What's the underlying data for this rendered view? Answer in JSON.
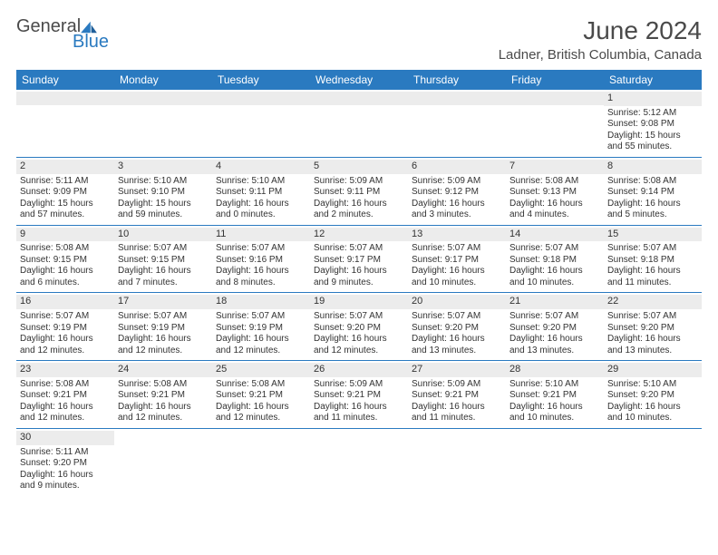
{
  "brand": {
    "part1": "General",
    "part2": "Blue"
  },
  "title": "June 2024",
  "location": "Ladner, British Columbia, Canada",
  "colors": {
    "header_bg": "#2a7ac0",
    "text": "#4a4a4a",
    "grid": "#2a7ac0",
    "daynum_bg": "#ececec"
  },
  "day_headers": [
    "Sunday",
    "Monday",
    "Tuesday",
    "Wednesday",
    "Thursday",
    "Friday",
    "Saturday"
  ],
  "weeks": [
    [
      {
        "n": "",
        "sr": "",
        "ss": "",
        "dl": ""
      },
      {
        "n": "",
        "sr": "",
        "ss": "",
        "dl": ""
      },
      {
        "n": "",
        "sr": "",
        "ss": "",
        "dl": ""
      },
      {
        "n": "",
        "sr": "",
        "ss": "",
        "dl": ""
      },
      {
        "n": "",
        "sr": "",
        "ss": "",
        "dl": ""
      },
      {
        "n": "",
        "sr": "",
        "ss": "",
        "dl": ""
      },
      {
        "n": "1",
        "sr": "Sunrise: 5:12 AM",
        "ss": "Sunset: 9:08 PM",
        "dl": "Daylight: 15 hours and 55 minutes."
      }
    ],
    [
      {
        "n": "2",
        "sr": "Sunrise: 5:11 AM",
        "ss": "Sunset: 9:09 PM",
        "dl": "Daylight: 15 hours and 57 minutes."
      },
      {
        "n": "3",
        "sr": "Sunrise: 5:10 AM",
        "ss": "Sunset: 9:10 PM",
        "dl": "Daylight: 15 hours and 59 minutes."
      },
      {
        "n": "4",
        "sr": "Sunrise: 5:10 AM",
        "ss": "Sunset: 9:11 PM",
        "dl": "Daylight: 16 hours and 0 minutes."
      },
      {
        "n": "5",
        "sr": "Sunrise: 5:09 AM",
        "ss": "Sunset: 9:11 PM",
        "dl": "Daylight: 16 hours and 2 minutes."
      },
      {
        "n": "6",
        "sr": "Sunrise: 5:09 AM",
        "ss": "Sunset: 9:12 PM",
        "dl": "Daylight: 16 hours and 3 minutes."
      },
      {
        "n": "7",
        "sr": "Sunrise: 5:08 AM",
        "ss": "Sunset: 9:13 PM",
        "dl": "Daylight: 16 hours and 4 minutes."
      },
      {
        "n": "8",
        "sr": "Sunrise: 5:08 AM",
        "ss": "Sunset: 9:14 PM",
        "dl": "Daylight: 16 hours and 5 minutes."
      }
    ],
    [
      {
        "n": "9",
        "sr": "Sunrise: 5:08 AM",
        "ss": "Sunset: 9:15 PM",
        "dl": "Daylight: 16 hours and 6 minutes."
      },
      {
        "n": "10",
        "sr": "Sunrise: 5:07 AM",
        "ss": "Sunset: 9:15 PM",
        "dl": "Daylight: 16 hours and 7 minutes."
      },
      {
        "n": "11",
        "sr": "Sunrise: 5:07 AM",
        "ss": "Sunset: 9:16 PM",
        "dl": "Daylight: 16 hours and 8 minutes."
      },
      {
        "n": "12",
        "sr": "Sunrise: 5:07 AM",
        "ss": "Sunset: 9:17 PM",
        "dl": "Daylight: 16 hours and 9 minutes."
      },
      {
        "n": "13",
        "sr": "Sunrise: 5:07 AM",
        "ss": "Sunset: 9:17 PM",
        "dl": "Daylight: 16 hours and 10 minutes."
      },
      {
        "n": "14",
        "sr": "Sunrise: 5:07 AM",
        "ss": "Sunset: 9:18 PM",
        "dl": "Daylight: 16 hours and 10 minutes."
      },
      {
        "n": "15",
        "sr": "Sunrise: 5:07 AM",
        "ss": "Sunset: 9:18 PM",
        "dl": "Daylight: 16 hours and 11 minutes."
      }
    ],
    [
      {
        "n": "16",
        "sr": "Sunrise: 5:07 AM",
        "ss": "Sunset: 9:19 PM",
        "dl": "Daylight: 16 hours and 12 minutes."
      },
      {
        "n": "17",
        "sr": "Sunrise: 5:07 AM",
        "ss": "Sunset: 9:19 PM",
        "dl": "Daylight: 16 hours and 12 minutes."
      },
      {
        "n": "18",
        "sr": "Sunrise: 5:07 AM",
        "ss": "Sunset: 9:19 PM",
        "dl": "Daylight: 16 hours and 12 minutes."
      },
      {
        "n": "19",
        "sr": "Sunrise: 5:07 AM",
        "ss": "Sunset: 9:20 PM",
        "dl": "Daylight: 16 hours and 12 minutes."
      },
      {
        "n": "20",
        "sr": "Sunrise: 5:07 AM",
        "ss": "Sunset: 9:20 PM",
        "dl": "Daylight: 16 hours and 13 minutes."
      },
      {
        "n": "21",
        "sr": "Sunrise: 5:07 AM",
        "ss": "Sunset: 9:20 PM",
        "dl": "Daylight: 16 hours and 13 minutes."
      },
      {
        "n": "22",
        "sr": "Sunrise: 5:07 AM",
        "ss": "Sunset: 9:20 PM",
        "dl": "Daylight: 16 hours and 13 minutes."
      }
    ],
    [
      {
        "n": "23",
        "sr": "Sunrise: 5:08 AM",
        "ss": "Sunset: 9:21 PM",
        "dl": "Daylight: 16 hours and 12 minutes."
      },
      {
        "n": "24",
        "sr": "Sunrise: 5:08 AM",
        "ss": "Sunset: 9:21 PM",
        "dl": "Daylight: 16 hours and 12 minutes."
      },
      {
        "n": "25",
        "sr": "Sunrise: 5:08 AM",
        "ss": "Sunset: 9:21 PM",
        "dl": "Daylight: 16 hours and 12 minutes."
      },
      {
        "n": "26",
        "sr": "Sunrise: 5:09 AM",
        "ss": "Sunset: 9:21 PM",
        "dl": "Daylight: 16 hours and 11 minutes."
      },
      {
        "n": "27",
        "sr": "Sunrise: 5:09 AM",
        "ss": "Sunset: 9:21 PM",
        "dl": "Daylight: 16 hours and 11 minutes."
      },
      {
        "n": "28",
        "sr": "Sunrise: 5:10 AM",
        "ss": "Sunset: 9:21 PM",
        "dl": "Daylight: 16 hours and 10 minutes."
      },
      {
        "n": "29",
        "sr": "Sunrise: 5:10 AM",
        "ss": "Sunset: 9:20 PM",
        "dl": "Daylight: 16 hours and 10 minutes."
      }
    ],
    [
      {
        "n": "30",
        "sr": "Sunrise: 5:11 AM",
        "ss": "Sunset: 9:20 PM",
        "dl": "Daylight: 16 hours and 9 minutes."
      },
      {
        "n": "",
        "sr": "",
        "ss": "",
        "dl": ""
      },
      {
        "n": "",
        "sr": "",
        "ss": "",
        "dl": ""
      },
      {
        "n": "",
        "sr": "",
        "ss": "",
        "dl": ""
      },
      {
        "n": "",
        "sr": "",
        "ss": "",
        "dl": ""
      },
      {
        "n": "",
        "sr": "",
        "ss": "",
        "dl": ""
      },
      {
        "n": "",
        "sr": "",
        "ss": "",
        "dl": ""
      }
    ]
  ]
}
